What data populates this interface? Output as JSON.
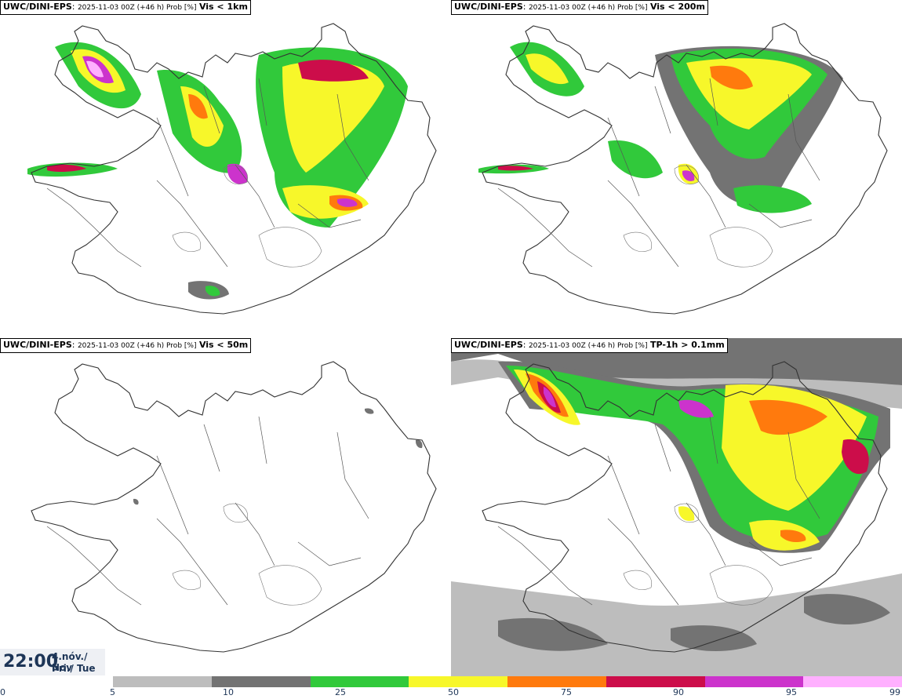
{
  "panels": [
    {
      "model": "UWC/DINI-EPS",
      "meta": "2025-11-03 00Z (+46 h) Prob [%]",
      "param": "Vis < 1km"
    },
    {
      "model": "UWC/DINI-EPS",
      "meta": "2025-11-03 00Z (+46 h) Prob [%]",
      "param": "Vis < 200m"
    },
    {
      "model": "UWC/DINI-EPS",
      "meta": "2025-11-03 00Z (+46 h) Prob [%]",
      "param": "Vis < 50m"
    },
    {
      "model": "UWC/DINI-EPS",
      "meta": "2025-11-03 00Z (+46 h) Prob [%]",
      "param": "TP-1h > 0.1mm"
    }
  ],
  "time": {
    "clock": "22:00",
    "date_line": "4.nóv./ Nov",
    "day_line": "Þri./ Tue"
  },
  "colorbar": {
    "ticks": [
      "0",
      "5",
      "10",
      "25",
      "50",
      "75",
      "90",
      "95",
      "99"
    ],
    "colors": [
      "#bdbdbd",
      "#737373",
      "#31c93b",
      "#f7f72a",
      "#ff7a0d",
      "#cc0d4a",
      "#cc33cc",
      "#ffb0ff"
    ]
  }
}
